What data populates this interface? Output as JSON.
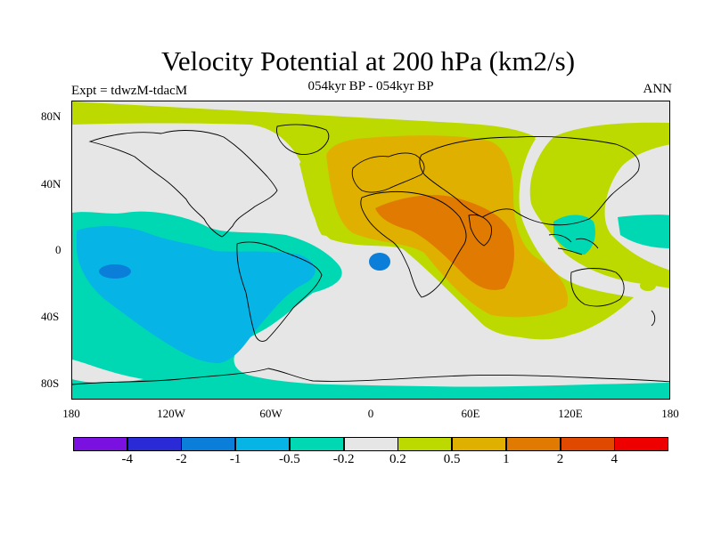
{
  "title": "Velocity Potential at 200 hPa (km2/s)",
  "subtitle": "054kyr BP - 054kyr BP",
  "left_label": "Expt = tdwzM-tdacM",
  "right_label": "ANN",
  "map": {
    "projection": "cylindrical-equidistant",
    "lon_range": [
      -180,
      180
    ],
    "lat_range": [
      -90,
      90
    ],
    "lat_ticks": [
      "80N",
      "40N",
      "0",
      "40S",
      "80S"
    ],
    "lon_ticks": [
      "180",
      "120W",
      "60W",
      "0",
      "60E",
      "120E",
      "180"
    ]
  },
  "colorbar": {
    "labels": [
      "-4",
      "-2",
      "-1",
      "-0.5",
      "-0.2",
      "0.2",
      "0.5",
      "1",
      "2",
      "4"
    ],
    "colors": [
      "#7a11e0",
      "#2a2ad6",
      "#0a7ed8",
      "#06b4e6",
      "#00d8b4",
      "#e6e6e6",
      "#bcd900",
      "#e0b000",
      "#e07a00",
      "#e04a00",
      "#ee0000"
    ]
  },
  "colors": {
    "neutral": "#e6e6e6",
    "pos1": "#bcd900",
    "pos2": "#e0b000",
    "pos3": "#e07a00",
    "neg1": "#00d8b4",
    "neg2": "#06b4e6",
    "neg3": "#0a7ed8"
  }
}
